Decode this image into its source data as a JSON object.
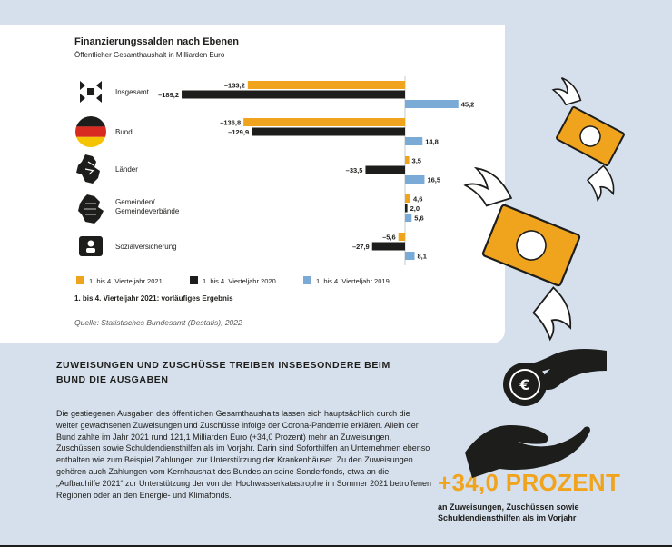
{
  "chart_title": "Finanzierungssalden nach Ebenen",
  "chart_subtitle": "Öffentlicher Gesamthaushalt in Milliarden Euro",
  "note": "1. bis 4. Vierteljahr 2021: vorläufiges Ergebnis",
  "source": "Quelle: Statistisches Bundesamt (Destatis), 2022",
  "headline": "ZUWEISUNGEN UND ZUSCHÜSSE TREIBEN INSBESONDERE BEIM BUND DIE AUSGABEN",
  "body": "Die gestiegenen Ausgaben des öffentlichen Gesamthaushalts lassen sich hauptsächlich durch die weiter gewachsenen Zuweisungen und Zuschüsse infolge der Corona-Pandemie erklären. Allein der Bund zahlte im Jahr 2021 rund 121,1 Milliarden Euro (+34,0 Prozent) mehr an Zuweisungen, Zuschüssen sowie Schuldendiensthilfen als im Vorjahr. Darin sind Soforthilfen an Unternehmen ebenso enthalten wie zum Beispiel Zahlungen zur Unterstützung der Krankenhäuser. Zu den Zuweisungen gehören auch Zahlungen vom Kernhaushalt des Bundes an seine Sonderfonds, etwa an die „Aufbauhilfe 2021“ zur Unterstützung der von der Hochwasserkatastrophe im Sommer 2021 betroffenen Regionen oder an den Energie- und Klimafonds.",
  "stat_value": "+34,0 PROZENT",
  "stat_desc": "an Zuweisungen, Zuschüssen sowie Schuldendiensthilfen als im Vorjahr",
  "colors": {
    "s2021": "#f0a41e",
    "s2020": "#1d1d1b",
    "s2019": "#7aaad6",
    "background": "#d6e0ec"
  },
  "chart_data": {
    "type": "bar",
    "orientation": "horizontal",
    "title": "Finanzierungssalden nach Ebenen",
    "subtitle": "Öffentlicher Gesamthaushalt in Milliarden Euro",
    "categories": [
      "Insgesamt",
      "Bund",
      "Länder",
      "Gemeinden/ Gemeindeverbände",
      "Sozialversicherung"
    ],
    "category_icons": [
      "government-levels-icon",
      "german-flag-icon",
      "laender-map-icon",
      "municipality-map-icon",
      "social-insurance-icon"
    ],
    "series": [
      {
        "name": "1. bis 4. Vierteljahr 2021",
        "values": [
          -133.2,
          -136.8,
          3.5,
          4.6,
          -5.6
        ],
        "labels": [
          "–133,2",
          "–136,8",
          "3,5",
          "4,6",
          "–5,6"
        ]
      },
      {
        "name": "1. bis 4. Vierteljahr 2020",
        "values": [
          -189.2,
          -129.9,
          -33.5,
          2.0,
          -27.9
        ],
        "labels": [
          "–189,2",
          "–129,9",
          "–33,5",
          "2,0",
          "–27,9"
        ]
      },
      {
        "name": "1. bis 4. Vierteljahr 2019",
        "values": [
          45.2,
          14.8,
          16.5,
          5.6,
          8.1
        ],
        "labels": [
          "45,2",
          "14,8",
          "16,5",
          "5,6",
          "8,1"
        ]
      }
    ],
    "legend": "bottom",
    "grid": false
  }
}
